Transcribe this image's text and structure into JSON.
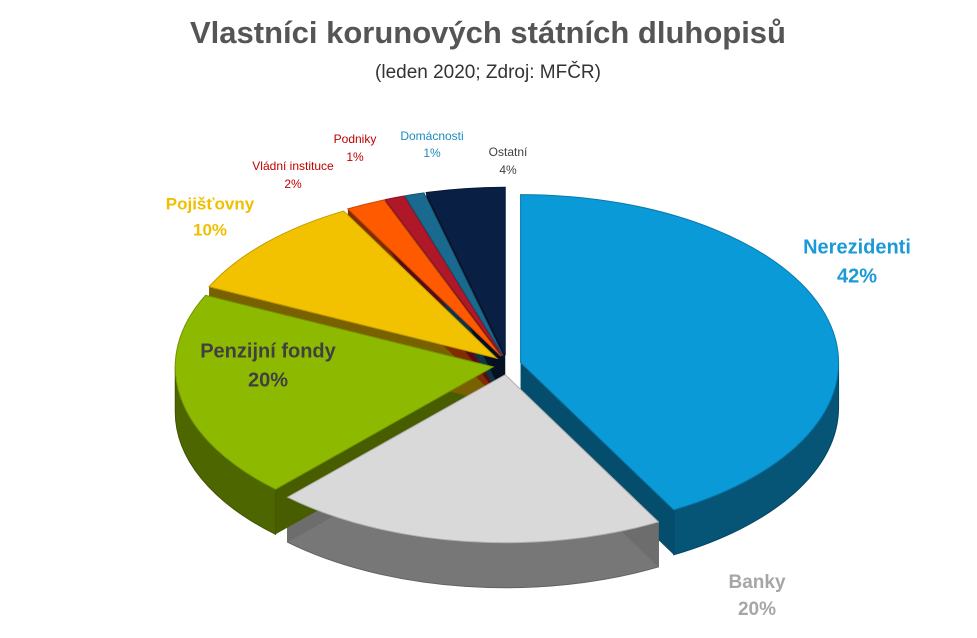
{
  "chart_data": {
    "type": "pie",
    "title": "Vlastníci korunových státních dluhopisů",
    "subtitle": "(leden 2020; Zdroj: MFČR)",
    "categories": [
      "Nerezidenti",
      "Banky",
      "Penzijní fondy",
      "Pojišťovny",
      "Vládní instituce",
      "Podniky",
      "Domácnosti",
      "Ostatní"
    ],
    "values": [
      42,
      20,
      20,
      10,
      2,
      1,
      1,
      4
    ],
    "value_labels": [
      "42%",
      "20%",
      "20%",
      "10%",
      "2%",
      "1%",
      "1%",
      "4%"
    ],
    "colors": [
      "#0a9ad8",
      "#d9d9d9",
      "#8dba00",
      "#f2c200",
      "#ff5a00",
      "#b0182a",
      "#1a6a90",
      "#0a1f44"
    ]
  }
}
